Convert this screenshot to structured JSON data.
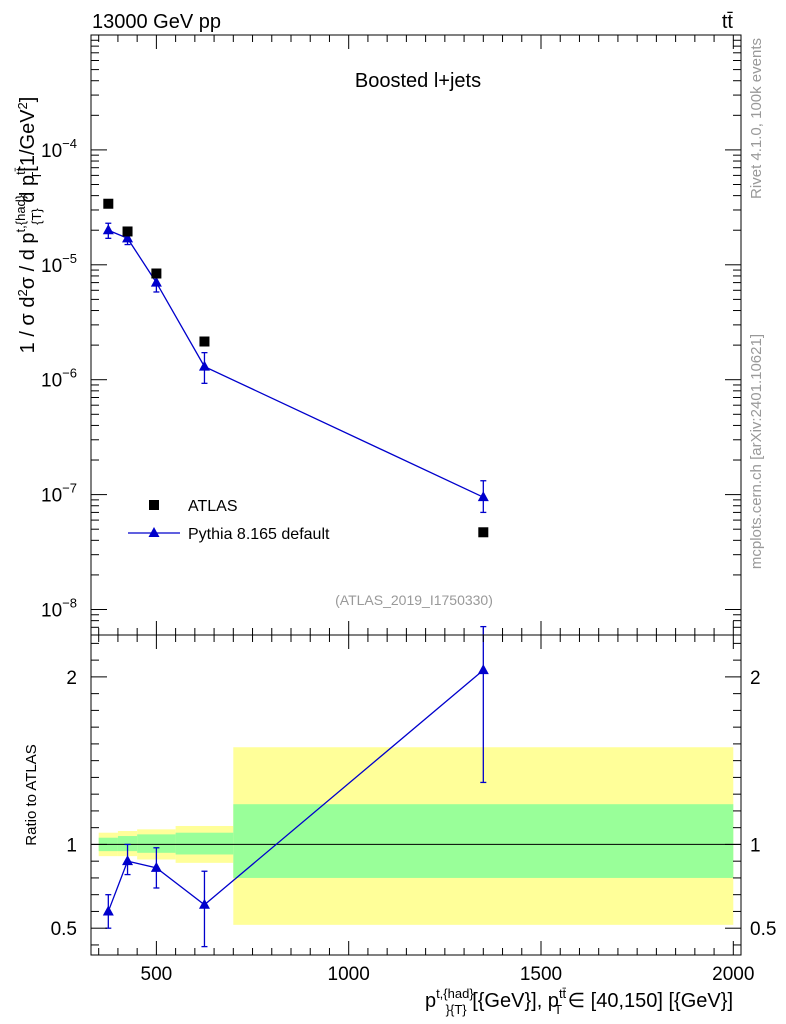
{
  "header": {
    "left": "13000 GeV pp",
    "right": "tt̄"
  },
  "side_labels": {
    "rivet": "Rivet 4.1.0,  100k events",
    "mcplots": "mcplots.cern.ch [arXiv:2401.10621]"
  },
  "chart_data": [
    {
      "type": "scatter",
      "title": "Boosted l+jets",
      "analysis_tag": "(ATLAS_2019_I1750330)",
      "ylabel": "1 / σ d²σ / d p^{t,{had}}_{T} d p^{tt̄}_{T} [1/GeV²]",
      "yscale": "log",
      "xlim": [
        330,
        2020
      ],
      "ylim": [
        6e-09,
        0.001
      ],
      "x_ticks": [
        500,
        1000,
        1500,
        2000
      ],
      "y_ticks": [
        {
          "value": 1e-08,
          "label": "10",
          "exp": "−8"
        },
        {
          "value": 1e-07,
          "label": "10",
          "exp": "−7"
        },
        {
          "value": 1e-06,
          "label": "10",
          "exp": "−6"
        },
        {
          "value": 1e-05,
          "label": "10",
          "exp": "−5"
        },
        {
          "value": 0.0001,
          "label": "10",
          "exp": "−4"
        }
      ],
      "legend_placement": "bottom-left",
      "series": [
        {
          "name": "ATLAS",
          "color": "#000000",
          "marker": "square",
          "x": [
            375,
            425,
            500,
            625,
            1350
          ],
          "y": [
            3.4e-05,
            1.95e-05,
            8.4e-06,
            2.15e-06,
            4.7e-08
          ]
        },
        {
          "name": "Pythia 8.165 default",
          "color": "#0000cc",
          "marker": "triangle",
          "x": [
            375,
            425,
            500,
            625,
            1350
          ],
          "y": [
            2e-05,
            1.7e-05,
            7e-06,
            1.3e-06,
            9.5e-08
          ],
          "yerr_low": [
            1.7e-05,
            1.5e-05,
            5.8e-06,
            9.3e-07,
            7e-08
          ],
          "yerr_high": [
            2.3e-05,
            1.9e-05,
            8.3e-06,
            1.72e-06,
            1.32e-07
          ]
        }
      ]
    },
    {
      "type": "scatter",
      "ylabel": "Ratio to ATLAS",
      "xlabel": "p^{t,{had}}_{T} [{GeV}], p^{tt̄}_{T} ∈ [40,150] [{GeV}]",
      "xlim": [
        330,
        2020
      ],
      "ylim": [
        0.34,
        2.25
      ],
      "x_ticks": [
        500,
        1000,
        1500,
        2000
      ],
      "y_ticks": [
        0.5,
        1,
        2
      ],
      "reference_line": 1,
      "bands": [
        {
          "x0": 350,
          "x1": 400,
          "yellow": [
            0.93,
            1.07
          ],
          "green": [
            0.96,
            1.04
          ]
        },
        {
          "x0": 400,
          "x1": 450,
          "yellow": [
            0.93,
            1.08
          ],
          "green": [
            0.96,
            1.05
          ]
        },
        {
          "x0": 450,
          "x1": 550,
          "yellow": [
            0.91,
            1.09
          ],
          "green": [
            0.95,
            1.06
          ]
        },
        {
          "x0": 550,
          "x1": 700,
          "yellow": [
            0.89,
            1.11
          ],
          "green": [
            0.94,
            1.07
          ]
        },
        {
          "x0": 700,
          "x1": 2000,
          "yellow": [
            0.52,
            1.58
          ],
          "green": [
            0.8,
            1.24
          ]
        }
      ],
      "band_colors": {
        "yellow": "#ffff99",
        "green": "#99ff99"
      },
      "series": [
        {
          "name": "Pythia 8.165 default",
          "color": "#0000cc",
          "marker": "triangle",
          "x": [
            375,
            425,
            500,
            625,
            1350
          ],
          "y": [
            0.6,
            0.9,
            0.86,
            0.64,
            2.04
          ],
          "yerr_low": [
            0.5,
            0.82,
            0.74,
            0.39,
            1.37
          ],
          "yerr_high": [
            0.7,
            1.0,
            0.98,
            0.84,
            2.3
          ]
        }
      ]
    }
  ]
}
